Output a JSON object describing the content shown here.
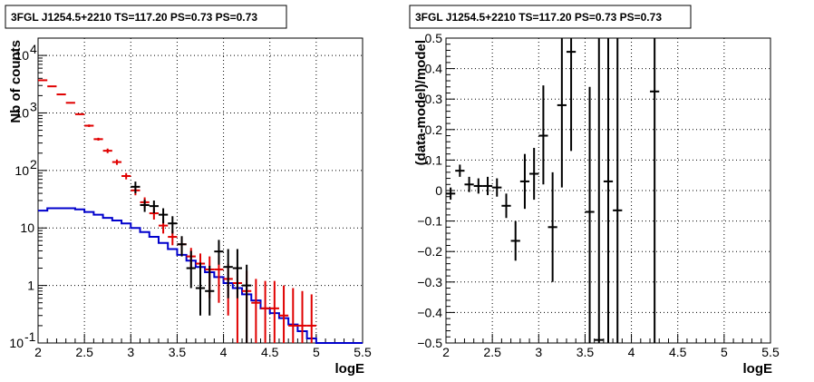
{
  "chart_data": [
    {
      "type": "histogram",
      "title": "3FGL J1254.5+2210 TS=117.20 PS=0.73 PS=0.73",
      "xlabel": "logE",
      "ylabel": "Nb of counts",
      "xlim": [
        2,
        5.5
      ],
      "ylim": [
        0.1,
        20000
      ],
      "yscale": "log",
      "grid": true,
      "x_ticks": [
        "2",
        "2.5",
        "3",
        "3.5",
        "4",
        "4.5",
        "5",
        "5.5"
      ],
      "y_ticks": [
        {
          "value": 0.1,
          "label": "10",
          "sup": "-1"
        },
        {
          "value": 1,
          "label": "1",
          "sup": ""
        },
        {
          "value": 10,
          "label": "10",
          "sup": ""
        },
        {
          "value": 100,
          "label": "10",
          "sup": "2"
        },
        {
          "value": 1000,
          "label": "10",
          "sup": "3"
        },
        {
          "value": 10000,
          "label": "10",
          "sup": "4"
        }
      ],
      "colors": {
        "data": "#000000",
        "model": "#e00000",
        "background": "#0000cc"
      },
      "bin_edges": [
        2.0,
        2.1,
        2.2,
        2.3,
        2.4,
        2.5,
        2.6,
        2.7,
        2.8,
        2.9,
        3.0,
        3.1,
        3.2,
        3.3,
        3.4,
        3.5,
        3.6,
        3.7,
        3.8,
        3.9,
        4.0,
        4.1,
        4.2,
        4.3,
        4.4,
        4.5,
        4.6,
        4.7,
        4.8,
        4.9,
        5.0,
        5.1,
        5.2,
        5.3,
        5.4,
        5.5
      ],
      "series": [
        {
          "style": "errorbar",
          "color": "#000000",
          "x": [
            3.05,
            3.15,
            3.25,
            3.35,
            3.45,
            3.55,
            3.65,
            3.75,
            3.85,
            3.95,
            4.05,
            4.15,
            4.25
          ],
          "y": [
            52,
            25,
            24,
            17,
            12,
            5.2,
            2.0,
            0.9,
            0.8,
            3.9,
            2.1,
            2.0,
            1.0
          ],
          "ylow": [
            40,
            19,
            18,
            12,
            8,
            3.2,
            0.9,
            0.3,
            0.3,
            2.3,
            0.6,
            0.6,
            0.1
          ],
          "yhigh": [
            64,
            31,
            30,
            22,
            16,
            7.2,
            4.0,
            2.5,
            2.2,
            6.2,
            4.3,
            4.3,
            2.3
          ]
        },
        {
          "style": "errorbar",
          "color": "#e00000",
          "x": [
            2.05,
            2.15,
            2.25,
            2.35,
            2.45,
            2.55,
            2.65,
            2.75,
            2.85,
            2.95,
            3.05,
            3.15,
            3.25,
            3.35,
            3.45,
            3.55,
            3.65,
            3.75,
            3.85,
            3.95,
            4.05,
            4.15,
            4.25,
            4.35,
            4.45,
            4.55,
            4.65,
            4.75,
            4.85,
            4.95
          ],
          "y": [
            3700,
            2900,
            2100,
            1500,
            950,
            600,
            350,
            220,
            140,
            80,
            45,
            28,
            18,
            11,
            7,
            5.2,
            3.2,
            2.4,
            1.9,
            1.9,
            1.3,
            1.1,
            0.8,
            0.5,
            0.4,
            0.4,
            0.3,
            0.2,
            0.2,
            0.2
          ],
          "ylow": [
            3600,
            2840,
            2050,
            1460,
            920,
            570,
            330,
            200,
            125,
            70,
            37,
            22,
            14,
            8,
            5,
            3.5,
            2.0,
            1.2,
            0.6,
            0.5,
            0.3,
            0.1,
            0.1,
            0.1,
            0.1,
            0.1,
            0.1,
            0.1,
            0.1,
            0.1
          ],
          "yhigh": [
            3800,
            2960,
            2150,
            1540,
            980,
            630,
            370,
            240,
            155,
            90,
            53,
            34,
            22,
            14,
            9,
            7.0,
            4.5,
            3.6,
            3.2,
            3.3,
            2.4,
            2.1,
            1.8,
            1.3,
            1.2,
            1.2,
            1.0,
            0.9,
            0.8,
            0.7
          ]
        },
        {
          "style": "step",
          "color": "#0000cc",
          "y": [
            20,
            22,
            22,
            22,
            21,
            19,
            17,
            15,
            13.5,
            12,
            10,
            8.5,
            7,
            5.5,
            4.3,
            3.4,
            2.7,
            2.1,
            1.7,
            1.4,
            1.1,
            0.9,
            0.7,
            0.55,
            0.4,
            0.33,
            0.27,
            0.21,
            0.16,
            0.12,
            0.1,
            0.1,
            0.1,
            0.1,
            0.1
          ]
        }
      ]
    },
    {
      "type": "errorbar",
      "title": "3FGL J1254.5+2210 TS=117.20 PS=0.73 PS=0.73",
      "xlabel": "logE",
      "ylabel": "(data-model)/model",
      "xlim": [
        2,
        5.5
      ],
      "ylim": [
        -0.5,
        0.5
      ],
      "grid": true,
      "x_ticks": [
        "2",
        "2.5",
        "3",
        "3.5",
        "4",
        "4.5",
        "5",
        "5.5"
      ],
      "y_ticks": [
        "−0.5",
        "−0.4",
        "−0.3",
        "−0.2",
        "−0.1",
        "0",
        "0.1",
        "0.2",
        "0.3",
        "0.4",
        "0.5"
      ],
      "y_tick_values": [
        -0.5,
        -0.4,
        -0.3,
        -0.2,
        -0.1,
        0,
        0.1,
        0.2,
        0.3,
        0.4,
        0.5
      ],
      "series": [
        {
          "color": "#000000",
          "x": [
            2.05,
            2.15,
            2.25,
            2.35,
            2.45,
            2.55,
            2.65,
            2.75,
            2.85,
            2.95,
            3.05,
            3.15,
            3.25,
            3.35,
            3.55,
            3.65,
            3.75,
            3.85,
            4.25
          ],
          "y": [
            -0.01,
            0.065,
            0.02,
            0.015,
            0.015,
            0.01,
            -0.05,
            -0.165,
            0.03,
            0.055,
            0.18,
            -0.12,
            0.28,
            0.455,
            -0.07,
            -0.49,
            0.03,
            -0.065,
            0.325
          ],
          "ylow": [
            -0.03,
            0.045,
            -0.005,
            -0.01,
            -0.015,
            -0.02,
            -0.09,
            -0.23,
            -0.06,
            -0.03,
            0.02,
            -0.3,
            0.01,
            0.13,
            -0.5,
            -0.5,
            -0.5,
            -0.5,
            -0.5
          ],
          "yhigh": [
            0.01,
            0.085,
            0.045,
            0.04,
            0.045,
            0.04,
            -0.01,
            -0.1,
            0.12,
            0.14,
            0.345,
            0.06,
            0.5,
            0.5,
            0.34,
            0.5,
            0.5,
            0.5,
            0.5
          ]
        }
      ]
    }
  ]
}
